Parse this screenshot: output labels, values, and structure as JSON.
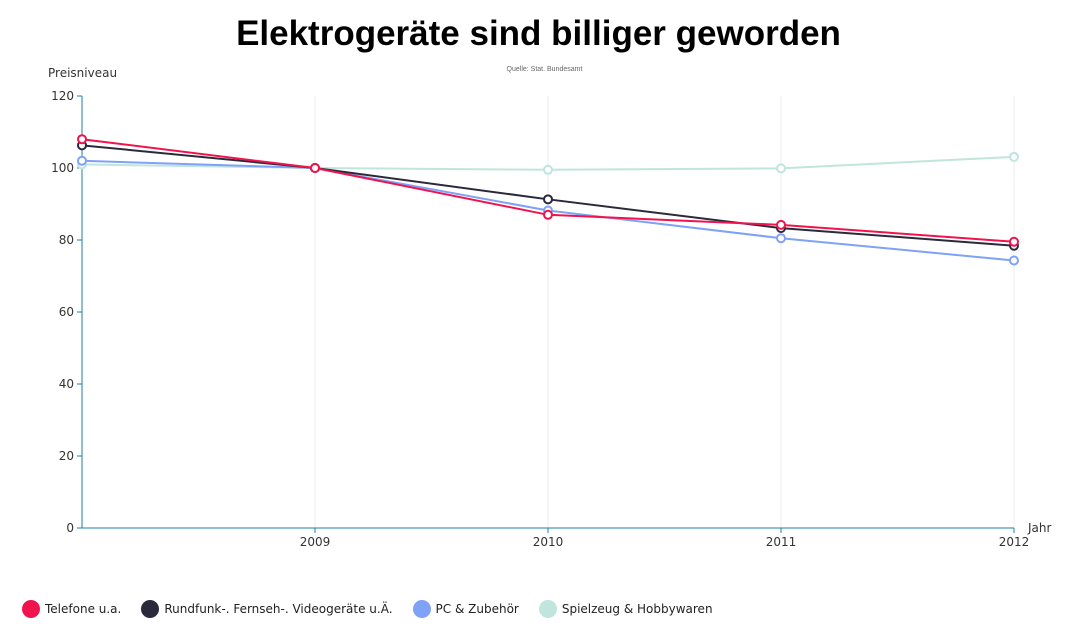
{
  "chart_data": {
    "type": "line",
    "title": "Elektrogeräte sind billiger geworden",
    "subtitle": "Quelle: Stat. Bundesamt",
    "xlabel": "Jahr",
    "ylabel": "Preisniveau",
    "x": [
      2008,
      2009,
      2010,
      2011,
      2012
    ],
    "x_tick_labels": [
      "2009",
      "2010",
      "2011",
      "2012"
    ],
    "ylim": [
      0,
      120
    ],
    "y_ticks": [
      0,
      20,
      40,
      60,
      80,
      100,
      120
    ],
    "grid": "vertical",
    "legend_position": "bottom-left",
    "series": [
      {
        "name": "Telefone u.a.",
        "color": "#f0134d",
        "values": [
          108,
          100,
          87,
          84.2,
          79.5
        ]
      },
      {
        "name": "Rundfunk-. Fernseh-. Videogeräte u.Ä.",
        "color": "#2a2a3c",
        "values": [
          106.3,
          100,
          91.3,
          83.3,
          78.4
        ]
      },
      {
        "name": "PC & Zubehör",
        "color": "#7fa1f7",
        "values": [
          102,
          100,
          88.2,
          80.5,
          74.3
        ]
      },
      {
        "name": "Spielzeug & Hobbywaren",
        "color": "#c0e5dc",
        "values": [
          101,
          100,
          99.5,
          99.9,
          103.1
        ]
      }
    ]
  }
}
